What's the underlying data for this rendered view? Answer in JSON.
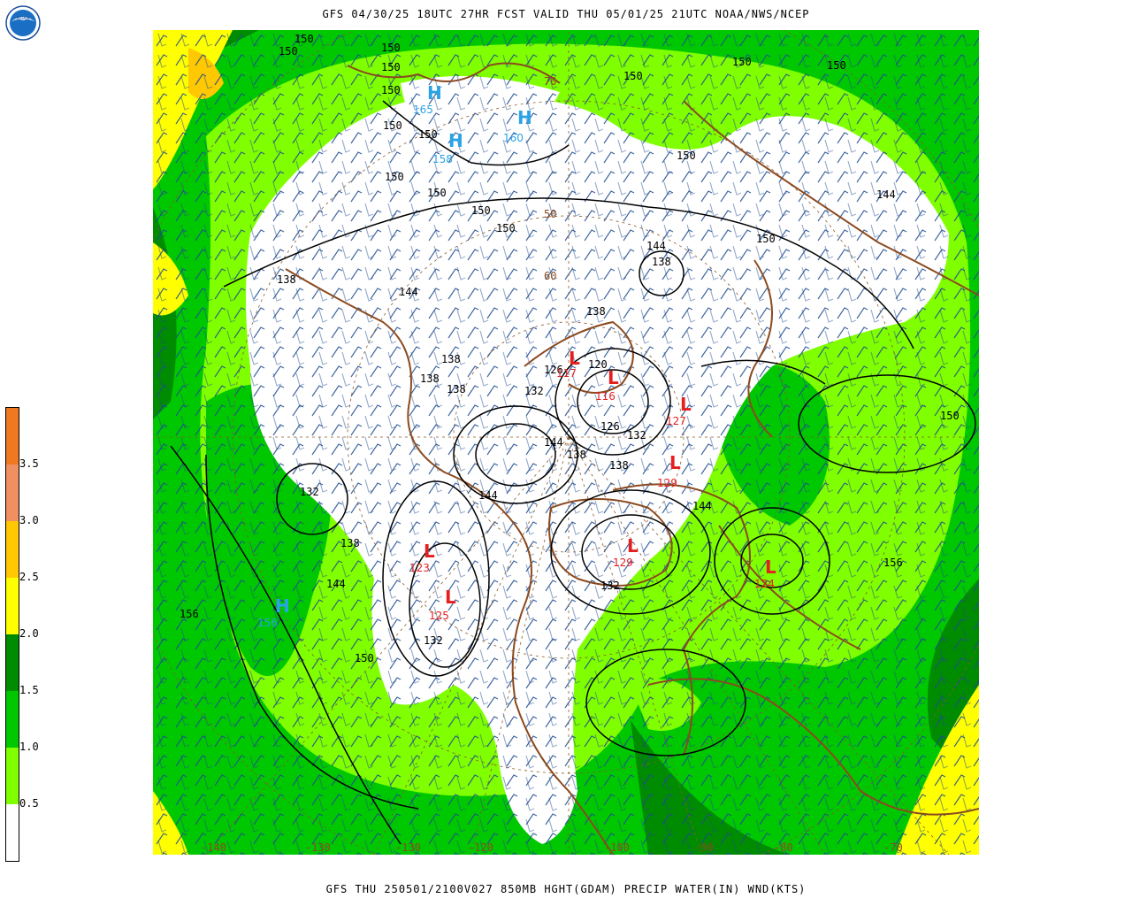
{
  "header": {
    "top_title": "GFS 04/30/25 18UTC 27HR FCST VALID THU 05/01/25 21UTC NOAA/NWS/NCEP",
    "bottom_title": "GFS THU 250501/2100V027 850MB HGHT(GDAM) PRECIP WATER(IN) WND(KTS)",
    "logo_text": "NOAA"
  },
  "legend": {
    "labels": [
      "0.5",
      "1.0",
      "1.5",
      "2.0",
      "2.5",
      "3.0",
      "3.5"
    ],
    "colors": {
      "white": "#ffffff",
      "lime": "#7fff00",
      "green": "#00c800",
      "dark_green": "#008c00",
      "yellow": "#ffff00",
      "gold": "#ffc800",
      "salmon": "#f09060",
      "orange": "#f07820"
    }
  },
  "map": {
    "contour_labels": [
      "150",
      "150",
      "150",
      "150",
      "150",
      "150",
      "150",
      "150",
      "150",
      "150",
      "150",
      "150",
      "150",
      "150",
      "150",
      "150",
      "150",
      "150",
      "138",
      "138",
      "138",
      "138",
      "138",
      "138",
      "138",
      "138",
      "138",
      "144",
      "144",
      "144",
      "144",
      "144",
      "144",
      "144",
      "132",
      "132",
      "132",
      "132",
      "132",
      "126",
      "120",
      "126",
      "156",
      "156"
    ],
    "highs": [
      {
        "letter": "H",
        "value": "156"
      },
      {
        "letter": "H",
        "value": "165"
      },
      {
        "letter": "H",
        "value": "158"
      },
      {
        "letter": "H",
        "value": "160"
      }
    ],
    "lows": [
      {
        "letter": "L",
        "value": "117"
      },
      {
        "letter": "L",
        "value": "116"
      },
      {
        "letter": "L",
        "value": "127"
      },
      {
        "letter": "L",
        "value": "129"
      },
      {
        "letter": "L",
        "value": "123"
      },
      {
        "letter": "L",
        "value": "125"
      },
      {
        "letter": "L",
        "value": "129"
      },
      {
        "letter": "L",
        "value": "124"
      }
    ],
    "longitude_labels": [
      "-140",
      "-130",
      "-130",
      "-120",
      "-100",
      "-90",
      "-80",
      "-70"
    ],
    "latitude_labels": [
      "50",
      "60",
      "70"
    ]
  }
}
